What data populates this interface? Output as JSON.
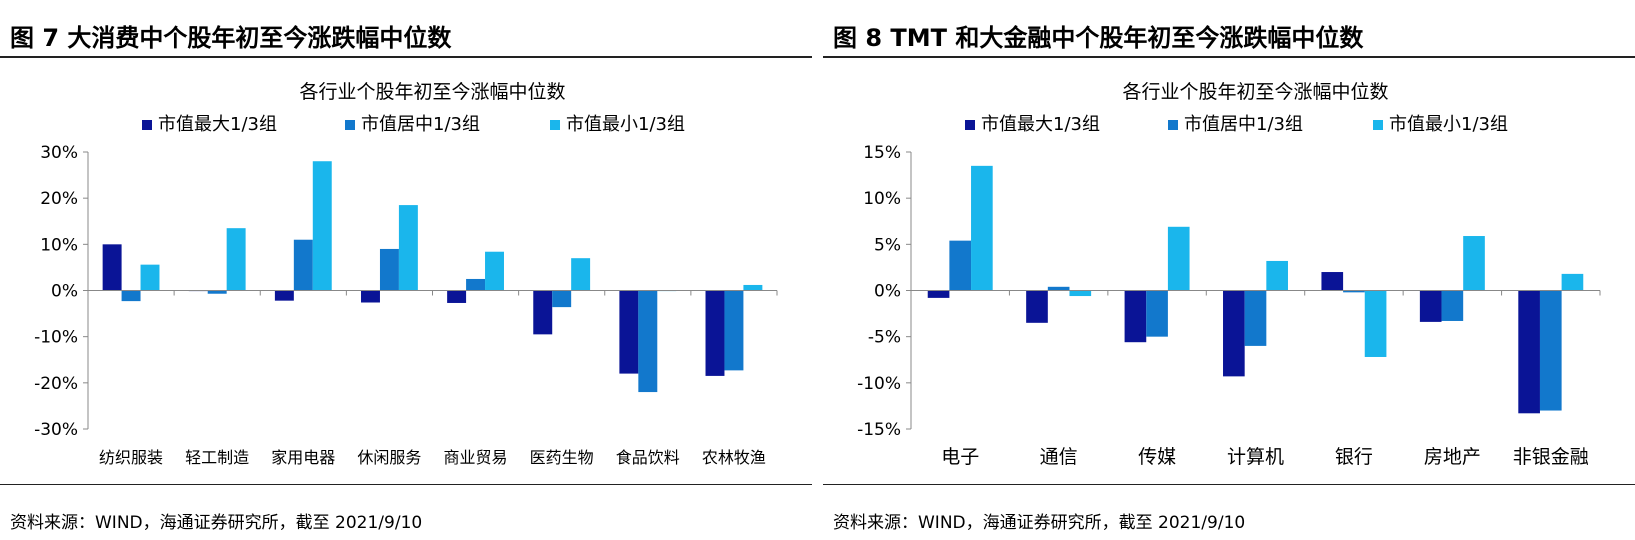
{
  "colors": {
    "large": "#0a1496",
    "mid": "#1278cc",
    "small": "#1ab6ec"
  },
  "panels": [
    {
      "title": "图 7  大消费中个股年初至今涨跌幅中位数",
      "source": "资料来源：WIND，海通证券研究所，截至 2021/9/10",
      "chart_data": {
        "type": "bar",
        "title": "各行业个股年初至今涨幅中位数",
        "categories": [
          "纺织服装",
          "轻工制造",
          "家用电器",
          "休闲服务",
          "商业贸易",
          "医药生物",
          "食品饮料",
          "农林牧渔"
        ],
        "series": [
          {
            "name": "市值最大1/3组",
            "values": [
              10.0,
              0.0,
              -2.2,
              -2.6,
              -2.7,
              -9.5,
              -18.0,
              -18.5
            ]
          },
          {
            "name": "市值居中1/3组",
            "values": [
              -2.3,
              -0.7,
              11.0,
              9.0,
              2.5,
              -3.6,
              -22.0,
              -17.3
            ]
          },
          {
            "name": "市值最小1/3组",
            "values": [
              5.6,
              13.5,
              28.0,
              18.5,
              8.4,
              7.0,
              0.0,
              1.2
            ]
          }
        ],
        "ylim": [
          -30,
          30
        ],
        "yticks": [
          -30,
          -20,
          -10,
          0,
          10,
          20,
          30
        ],
        "ytick_labels": [
          "-30%",
          "-20%",
          "-10%",
          "0%",
          "10%",
          "20%",
          "30%"
        ],
        "legend_position": "top"
      }
    },
    {
      "title": "图 8  TMT 和大金融中个股年初至今涨跌幅中位数",
      "source": "资料来源：WIND，海通证券研究所，截至 2021/9/10",
      "chart_data": {
        "type": "bar",
        "title": "各行业个股年初至今涨幅中位数",
        "categories": [
          "电子",
          "通信",
          "传媒",
          "计算机",
          "银行",
          "房地产",
          "非银金融"
        ],
        "series": [
          {
            "name": "市值最大1/3组",
            "values": [
              -0.8,
              -3.5,
              -5.6,
              -9.3,
              2.0,
              -3.4,
              -13.3
            ]
          },
          {
            "name": "市值居中1/3组",
            "values": [
              5.4,
              0.4,
              -5.0,
              -6.0,
              -0.2,
              -3.3,
              -13.0
            ]
          },
          {
            "name": "市值最小1/3组",
            "values": [
              13.5,
              -0.6,
              6.9,
              3.2,
              -7.2,
              5.9,
              1.8
            ]
          }
        ],
        "ylim": [
          -15,
          15
        ],
        "yticks": [
          -15,
          -10,
          -5,
          0,
          5,
          10,
          15
        ],
        "ytick_labels": [
          "-15%",
          "-10%",
          "-5%",
          "0%",
          "5%",
          "10%",
          "15%"
        ],
        "legend_position": "top"
      }
    }
  ]
}
